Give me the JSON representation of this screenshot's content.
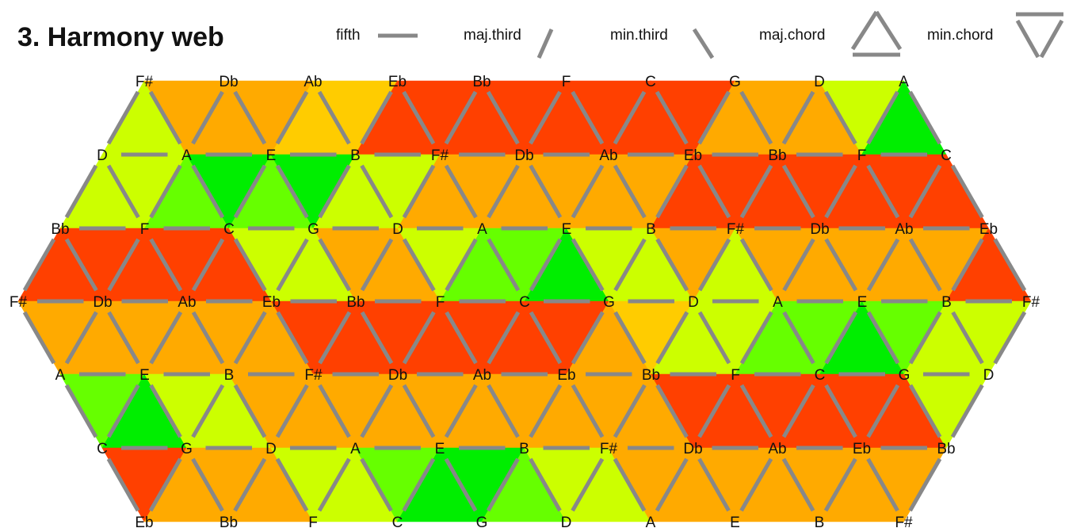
{
  "title": "3. Harmony web",
  "legend": [
    {
      "label": "fifth",
      "symbol": "fifth-line"
    },
    {
      "label": "maj.third",
      "symbol": "maj-third-line"
    },
    {
      "label": "min.third",
      "symbol": "min-third-line"
    },
    {
      "label": "maj.chord",
      "symbol": "maj-chord-triangle"
    },
    {
      "label": "min.chord",
      "symbol": "min-chord-triangle"
    }
  ],
  "colors": {
    "red": "#ff4000",
    "orange": "#ffaa00",
    "amber": "#ffcc00",
    "yellow_green": "#ccff00",
    "light_green": "#66ff00",
    "green": "#00ee00",
    "line": "#888888"
  },
  "rows": [
    {
      "notes": [
        "F#",
        "Db",
        "Ab",
        "Eb",
        "Bb",
        "F",
        "C",
        "G",
        "D",
        "A"
      ]
    },
    {
      "notes": [
        "D",
        "A",
        "E",
        "B",
        "F#",
        "Db",
        "Ab",
        "Eb",
        "Bb",
        "F",
        "C"
      ]
    },
    {
      "notes": [
        "Bb",
        "F",
        "C",
        "G",
        "D",
        "A",
        "E",
        "B",
        "F#",
        "Db",
        "Ab",
        "Eb"
      ]
    },
    {
      "notes": [
        "F#",
        "Db",
        "Ab",
        "Eb",
        "Bb",
        "F",
        "C",
        "G",
        "D",
        "A",
        "E",
        "B",
        "F#"
      ]
    },
    {
      "notes": [
        "A",
        "E",
        "B",
        "F#",
        "Db",
        "Ab",
        "Eb",
        "Bb",
        "F",
        "C",
        "G",
        "D"
      ]
    },
    {
      "notes": [
        "C",
        "G",
        "D",
        "A",
        "E",
        "B",
        "F#",
        "Db",
        "Ab",
        "Eb",
        "Bb"
      ]
    },
    {
      "notes": [
        "Eb",
        "Bb",
        "F",
        "C",
        "G",
        "D",
        "A",
        "E",
        "B",
        "F#"
      ]
    }
  ]
}
